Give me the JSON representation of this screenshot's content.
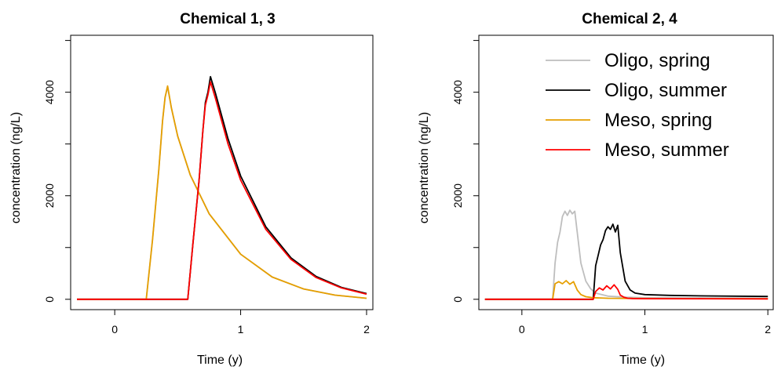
{
  "chart_data": [
    {
      "type": "line",
      "title": "Chemical 1, 3",
      "xlabel": "Time (y)",
      "ylabel": "concentration (ng/L)",
      "xlim": [
        -0.35,
        2.05
      ],
      "ylim": [
        -200,
        5100
      ],
      "xticks": [
        0,
        1,
        2
      ],
      "yticks": [
        0,
        2000,
        4000
      ],
      "legend": false,
      "series": [
        {
          "color": "#bebebe",
          "x": [
            -0.3,
            0.25,
            0.3,
            0.35,
            0.38,
            0.4,
            0.42,
            0.45,
            0.5,
            0.6,
            0.75,
            1.0,
            1.25,
            1.5,
            1.75,
            2.0
          ],
          "y": [
            0,
            0,
            1150,
            2500,
            3450,
            3900,
            4100,
            3700,
            3150,
            2400,
            1650,
            870,
            430,
            200,
            80,
            20
          ]
        },
        {
          "color": "#000000",
          "x": [
            -0.3,
            0.58,
            0.62,
            0.67,
            0.7,
            0.72,
            0.74,
            0.76,
            0.8,
            0.9,
            1.0,
            1.2,
            1.4,
            1.6,
            1.8,
            2.0
          ],
          "y": [
            0,
            0,
            1050,
            2300,
            3250,
            3800,
            4000,
            4300,
            3980,
            3100,
            2380,
            1400,
            800,
            440,
            230,
            110
          ]
        },
        {
          "color": "#e69f00",
          "x": [
            -0.3,
            0.25,
            0.3,
            0.35,
            0.38,
            0.4,
            0.42,
            0.45,
            0.5,
            0.6,
            0.75,
            1.0,
            1.25,
            1.5,
            1.75,
            2.0
          ],
          "y": [
            0,
            0,
            1150,
            2500,
            3450,
            3900,
            4120,
            3700,
            3150,
            2400,
            1650,
            870,
            430,
            200,
            80,
            20
          ]
        },
        {
          "color": "#ff0000",
          "x": [
            -0.3,
            0.58,
            0.62,
            0.67,
            0.7,
            0.72,
            0.74,
            0.76,
            0.8,
            0.9,
            1.0,
            1.2,
            1.4,
            1.6,
            1.8,
            2.0
          ],
          "y": [
            0,
            0,
            1050,
            2300,
            3250,
            3750,
            3950,
            4200,
            3880,
            3000,
            2300,
            1350,
            770,
            420,
            220,
            100
          ]
        }
      ]
    },
    {
      "type": "line",
      "title": "Chemical 2, 4",
      "xlabel": "Time (y)",
      "ylabel": "concentration (ng/L)",
      "xlim": [
        -0.35,
        2.05
      ],
      "ylim": [
        -200,
        5100
      ],
      "xticks": [
        0,
        1,
        2
      ],
      "yticks": [
        0,
        2000,
        4000
      ],
      "legend": "top-right",
      "series": [
        {
          "name": "Oligo, spring",
          "color": "#bebebe",
          "x": [
            -0.3,
            0.25,
            0.27,
            0.29,
            0.31,
            0.33,
            0.35,
            0.37,
            0.39,
            0.41,
            0.43,
            0.45,
            0.48,
            0.52,
            0.56,
            0.6,
            0.7,
            0.85,
            1.0,
            1.5,
            2.0
          ],
          "y": [
            0,
            0,
            700,
            1100,
            1300,
            1600,
            1700,
            1620,
            1720,
            1650,
            1700,
            1300,
            700,
            350,
            200,
            120,
            60,
            40,
            30,
            25,
            20
          ]
        },
        {
          "name": "Oligo, summer",
          "color": "#000000",
          "x": [
            -0.3,
            0.58,
            0.6,
            0.62,
            0.64,
            0.66,
            0.68,
            0.7,
            0.72,
            0.74,
            0.76,
            0.78,
            0.8,
            0.84,
            0.88,
            0.92,
            1.0,
            1.2,
            1.5,
            2.0
          ],
          "y": [
            0,
            0,
            650,
            850,
            1050,
            1150,
            1330,
            1400,
            1350,
            1450,
            1300,
            1430,
            900,
            350,
            180,
            120,
            90,
            75,
            65,
            55
          ]
        },
        {
          "name": "Meso, spring",
          "color": "#e69f00",
          "x": [
            -0.3,
            0.25,
            0.27,
            0.3,
            0.33,
            0.36,
            0.39,
            0.42,
            0.45,
            0.48,
            0.52,
            0.58,
            0.7,
            1.0,
            1.5,
            2.0
          ],
          "y": [
            0,
            0,
            300,
            340,
            300,
            360,
            290,
            340,
            180,
            90,
            50,
            30,
            20,
            15,
            12,
            10
          ]
        },
        {
          "name": "Meso, summer",
          "color": "#ff0000",
          "x": [
            -0.3,
            0.58,
            0.6,
            0.63,
            0.66,
            0.69,
            0.72,
            0.75,
            0.78,
            0.8,
            0.83,
            0.86,
            0.9,
            1.0,
            1.5,
            2.0
          ],
          "y": [
            0,
            0,
            150,
            220,
            180,
            260,
            200,
            280,
            190,
            80,
            40,
            20,
            15,
            12,
            10,
            8
          ]
        }
      ]
    }
  ]
}
